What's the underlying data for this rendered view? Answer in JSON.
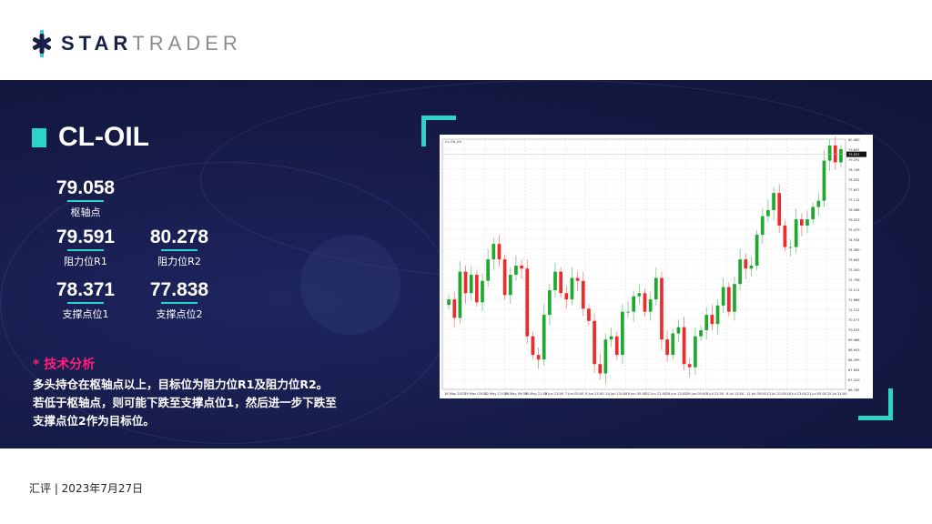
{
  "brand": {
    "part1": "STAR",
    "part2": "TRADER"
  },
  "instrument": "CL-OIL",
  "levels": {
    "pivot": {
      "value": "79.058",
      "label": "枢轴点"
    },
    "r1": {
      "value": "79.591",
      "label": "阻力位R1"
    },
    "r2": {
      "value": "80.278",
      "label": "阻力位R2"
    },
    "s1": {
      "value": "78.371",
      "label": "支撑点位1"
    },
    "s2": {
      "value": "77.838",
      "label": "支撑点位2"
    }
  },
  "analysis": {
    "heading": "* 技术分析",
    "lines": [
      "多头持仓在枢轴点以上，目标位为阻力位R1及阻力位R2。",
      "若低于枢轴点，则可能下跌至支撑点位1，然后进一步下跌至",
      "支撑点位2作为目标位。"
    ]
  },
  "footer": "汇评 | 2023年7月27日",
  "colors": {
    "band": "#151a45",
    "accent": "#2ad4c6",
    "heading": "#ff1f7a",
    "up": "#1fa82f",
    "down": "#ee2b2b"
  },
  "chart_data": {
    "type": "candlestick",
    "title": "CL-OIL,H4",
    "ylim": [
      66.765,
      80.38
    ],
    "grid": true,
    "x_tick_labels": [
      "16 May 2023",
      "19 May 03:00",
      "22 May 17:00",
      "26 May 09:00",
      "30 May 21:00",
      "2 Jun 13:00",
      "7 Jun 05:00",
      "9 Jun 21:00",
      "14 Jun 13:00",
      "19 Jun 05:00",
      "21 Jun 21:00",
      "26 Jun 13:00",
      "29 Jun 05:00",
      "3 Jul 21:00",
      "6 Jul 13:00",
      "11 Jul 05:00",
      "13 Jul 21:00",
      "18 Jul 13:00",
      "21 Jul 05:00",
      "25 Jul 21:00"
    ],
    "current_price": 79.557,
    "close": [
      71.66,
      70.65,
      73.17,
      72.0,
      73.0,
      71.5,
      72.67,
      73.84,
      74.68,
      73.84,
      71.9,
      73.0,
      73.5,
      73.34,
      69.65,
      68.64,
      68.39,
      70.82,
      72.16,
      73.17,
      72.0,
      71.66,
      72.83,
      72.67,
      71.16,
      70.49,
      68.14,
      67.63,
      69.48,
      69.65,
      68.64,
      70.99,
      70.99,
      71.83,
      72.0,
      70.99,
      71.66,
      72.83,
      69.48,
      68.64,
      69.81,
      70.15,
      68.14,
      67.97,
      69.65,
      69.98,
      70.82,
      70.32,
      71.33,
      72.33,
      70.99,
      72.5,
      73.84,
      73.34,
      73.5,
      75.18,
      76.19,
      76.52,
      77.45,
      75.68,
      74.51,
      74.51,
      76.02,
      75.68,
      76.02,
      76.69,
      77.03,
      79.21,
      80.04,
      79.12,
      79.84
    ]
  }
}
